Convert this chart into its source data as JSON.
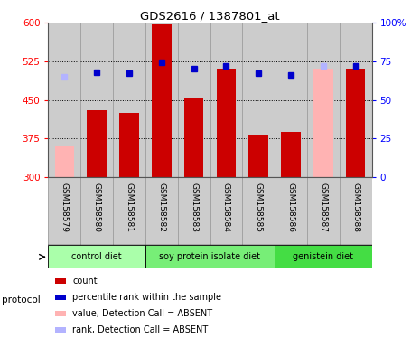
{
  "title": "GDS2616 / 1387801_at",
  "samples": [
    "GSM158579",
    "GSM158580",
    "GSM158581",
    "GSM158582",
    "GSM158583",
    "GSM158584",
    "GSM158585",
    "GSM158586",
    "GSM158587",
    "GSM158588"
  ],
  "bar_values": [
    360,
    430,
    425,
    597,
    453,
    510,
    382,
    388,
    510,
    510
  ],
  "bar_colors": [
    "#ffb3b3",
    "#cc0000",
    "#cc0000",
    "#cc0000",
    "#cc0000",
    "#cc0000",
    "#cc0000",
    "#cc0000",
    "#ffb3b3",
    "#cc0000"
  ],
  "rank_values": [
    65,
    68,
    67,
    74,
    70,
    72,
    67,
    66,
    72,
    72
  ],
  "rank_colors": [
    "#b3b3ff",
    "#0000cc",
    "#0000cc",
    "#0000cc",
    "#0000cc",
    "#0000cc",
    "#0000cc",
    "#0000cc",
    "#b3b3ff",
    "#0000cc"
  ],
  "ylim_left": [
    300,
    600
  ],
  "ylim_right": [
    0,
    100
  ],
  "yticks_left": [
    300,
    375,
    450,
    525,
    600
  ],
  "yticks_right": [
    0,
    25,
    50,
    75,
    100
  ],
  "hlines": [
    375,
    450,
    525
  ],
  "protocols": [
    {
      "label": "control diet",
      "start": 0,
      "end": 3
    },
    {
      "label": "soy protein isolate diet",
      "start": 3,
      "end": 7
    },
    {
      "label": "genistein diet",
      "start": 7,
      "end": 10
    }
  ],
  "protocol_colors": [
    "#aaffaa",
    "#77ee77",
    "#44dd44"
  ],
  "legend_colors": [
    "#cc0000",
    "#0000cc",
    "#ffb3b3",
    "#b3b3ff"
  ],
  "legend_labels": [
    "count",
    "percentile rank within the sample",
    "value, Detection Call = ABSENT",
    "rank, Detection Call = ABSENT"
  ],
  "protocol_label": "protocol",
  "bar_width": 0.6,
  "bg_color": "#cccccc",
  "col_edge_color": "#999999"
}
